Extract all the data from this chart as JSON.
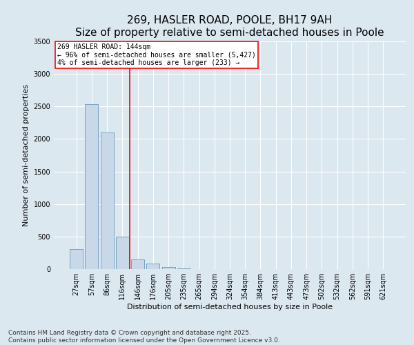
{
  "title": "269, HASLER ROAD, POOLE, BH17 9AH",
  "subtitle": "Size of property relative to semi-detached houses in Poole",
  "xlabel": "Distribution of semi-detached houses by size in Poole",
  "ylabel": "Number of semi-detached properties",
  "categories": [
    "27sqm",
    "57sqm",
    "86sqm",
    "116sqm",
    "146sqm",
    "176sqm",
    "205sqm",
    "235sqm",
    "265sqm",
    "294sqm",
    "324sqm",
    "354sqm",
    "384sqm",
    "413sqm",
    "443sqm",
    "473sqm",
    "502sqm",
    "532sqm",
    "562sqm",
    "591sqm",
    "621sqm"
  ],
  "values": [
    305,
    2530,
    2100,
    500,
    150,
    80,
    30,
    10,
    5,
    0,
    0,
    0,
    0,
    0,
    0,
    0,
    0,
    0,
    0,
    0,
    0
  ],
  "bar_color": "#c8d8e8",
  "bar_edge_color": "#6699bb",
  "vline_color": "red",
  "vline_x": 3.5,
  "annotation_text": "269 HASLER ROAD: 144sqm\n← 96% of semi-detached houses are smaller (5,427)\n4% of semi-detached houses are larger (233) →",
  "annotation_box_color": "white",
  "annotation_box_edge_color": "red",
  "ylim": [
    0,
    3500
  ],
  "yticks": [
    0,
    500,
    1000,
    1500,
    2000,
    2500,
    3000,
    3500
  ],
  "footnote": "Contains HM Land Registry data © Crown copyright and database right 2025.\nContains public sector information licensed under the Open Government Licence v3.0.",
  "background_color": "#dce8f0",
  "plot_background_color": "#dce8f0",
  "title_fontsize": 11,
  "subtitle_fontsize": 10,
  "label_fontsize": 8,
  "tick_fontsize": 7,
  "annotation_fontsize": 7,
  "footnote_fontsize": 6.5
}
